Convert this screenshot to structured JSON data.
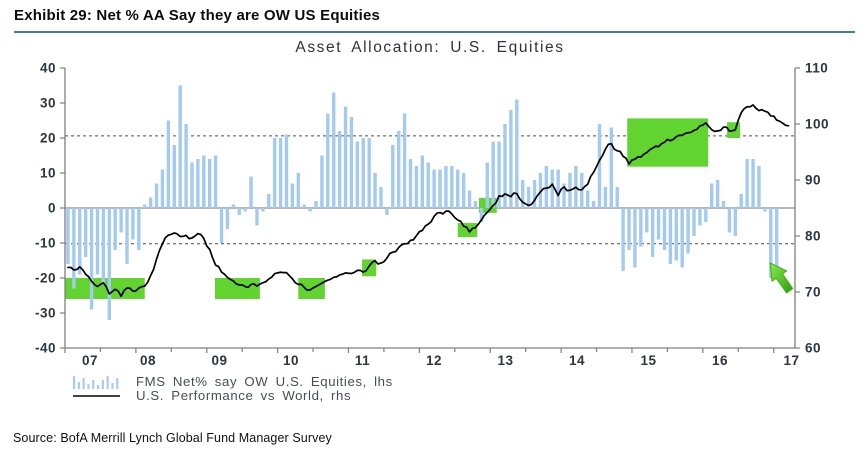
{
  "page": {
    "exhibit_title": "Exhibit 29: Net % AA Say they are OW US Equities",
    "source": "Source: BofA Merrill Lynch Global Fund Manager Survey",
    "accent_blue": "#4478ad"
  },
  "legend": {
    "items": [
      {
        "label": "FMS Net% say OW U.S. Equities, lhs",
        "icon": "mini-bars-icon",
        "color": "#a4cbef"
      },
      {
        "label": "U.S. Performance vs World, rhs",
        "icon": "line-icon",
        "color": "#000000"
      }
    ]
  },
  "chart_data": {
    "type": "bar+line",
    "title": "Asset Allocation: U.S. Equities",
    "x_labels": [
      "07",
      "08",
      "09",
      "10",
      "11",
      "12",
      "13",
      "14",
      "15",
      "16",
      "17"
    ],
    "months_per_label": 12,
    "left_axis": {
      "min": -40,
      "max": 40,
      "ticks": [
        40,
        30,
        20,
        10,
        0,
        -10,
        -20,
        -30,
        -40
      ]
    },
    "right_axis": {
      "min": 60,
      "max": 110,
      "ticks": [
        110,
        100,
        90,
        80,
        70,
        60
      ]
    },
    "dashed_gridlines_left": [
      20.6,
      -10.2
    ],
    "zero_line_left": 0,
    "series": [
      {
        "name": "FMS Net% say OW U.S. Equities, lhs",
        "type": "bar",
        "axis": "left",
        "color": "#a4cbef",
        "values": [
          -16,
          -23,
          -19,
          -14,
          -29,
          -19,
          -22,
          -32,
          -12,
          -7,
          -16,
          -9,
          -12,
          1,
          3,
          7,
          11,
          25,
          18,
          35,
          24,
          13,
          14,
          15,
          14,
          15,
          -10,
          -6,
          1,
          -2,
          -1,
          9,
          -5,
          -1,
          4,
          20,
          20,
          21,
          7,
          10,
          1,
          -1,
          2,
          15,
          27,
          33,
          22,
          29,
          26,
          19,
          20,
          20,
          10,
          6,
          -2,
          18,
          22,
          27,
          14,
          12,
          15,
          13,
          11,
          11,
          12,
          12,
          11,
          10,
          5,
          2,
          -4,
          13,
          19,
          19,
          24,
          28,
          31,
          8,
          6,
          8,
          10,
          12,
          11,
          11,
          7,
          10,
          12,
          10,
          5,
          2,
          24,
          6,
          23,
          6,
          -18,
          -12,
          -17,
          -11,
          -7,
          -14,
          -9,
          -12,
          -16,
          -15,
          -17,
          -13,
          -8,
          -5,
          -4,
          7,
          8,
          2,
          -7,
          -8,
          4,
          14,
          14,
          12,
          -1,
          -20,
          -17
        ]
      },
      {
        "name": "U.S. Performance vs World, rhs",
        "type": "line",
        "axis": "right",
        "color": "#000000",
        "values": [
          74.5,
          73.8,
          74.6,
          73.2,
          72.0,
          71.0,
          71.8,
          69.8,
          70.6,
          69.4,
          70.8,
          70.2,
          70.6,
          71.2,
          72.8,
          76.0,
          78.5,
          80.0,
          80.7,
          79.8,
          80.2,
          79.5,
          80.4,
          79.7,
          77.5,
          74.8,
          73.6,
          72.6,
          71.8,
          71.1,
          70.9,
          71.4,
          70.9,
          71.6,
          72.4,
          73.1,
          73.7,
          73.3,
          72.3,
          71.5,
          70.7,
          70.4,
          70.9,
          71.6,
          72.1,
          72.7,
          73.1,
          73.4,
          73.2,
          73.9,
          73.4,
          74.6,
          75.4,
          75.1,
          76.2,
          77.0,
          77.8,
          78.6,
          79.2,
          80.2,
          81.0,
          82.2,
          83.4,
          84.3,
          84.5,
          84.0,
          83.0,
          81.8,
          80.6,
          81.5,
          83.0,
          84.3,
          85.6,
          87.0,
          87.4,
          87.1,
          87.5,
          86.1,
          85.6,
          86.5,
          87.8,
          88.7,
          89.4,
          87.4,
          88.6,
          88.0,
          88.8,
          88.4,
          89.3,
          91.2,
          93.6,
          95.5,
          96.4,
          95.3,
          94.4,
          92.9,
          93.6,
          94.2,
          94.9,
          95.6,
          96.1,
          96.6,
          97.1,
          97.6,
          98.0,
          98.4,
          98.8,
          99.6,
          100.3,
          99.0,
          98.7,
          99.3,
          98.6,
          99.1,
          101.9,
          103.1,
          103.4,
          102.4,
          102.2,
          101.4,
          100.8,
          100.0,
          99.8
        ]
      }
    ],
    "highlight_boxes": {
      "color": "#61d42f",
      "regions": [
        {
          "month_from": 0.0,
          "month_to": 13.5,
          "value_from": -26.0,
          "value_to": -20.0
        },
        {
          "month_from": 25.4,
          "month_to": 33.0,
          "value_from": -26.0,
          "value_to": -20.0
        },
        {
          "month_from": 39.5,
          "month_to": 44.0,
          "value_from": -26.0,
          "value_to": -20.0
        },
        {
          "month_from": 50.3,
          "month_to": 52.7,
          "value_from": -19.5,
          "value_to": -14.7
        },
        {
          "month_from": 66.5,
          "month_to": 69.8,
          "value_from": -8.3,
          "value_to": -4.3
        },
        {
          "month_from": 70.1,
          "month_to": 73.1,
          "value_from": -1.4,
          "value_to": 2.9
        },
        {
          "month_from": 95.2,
          "month_to": 108.9,
          "value_from": 11.8,
          "value_to": 25.6
        },
        {
          "month_from": 112.1,
          "month_to": 114.3,
          "value_from": 20.0,
          "value_to": 24.5
        }
      ]
    },
    "annotation_arrow": {
      "tip_month": 119.4,
      "tip_value_left": -15.7,
      "points_direction": "up-left",
      "fill_light": "#8ceb4a",
      "fill_dark": "#2d9c10",
      "stroke": "#3fae17"
    }
  }
}
